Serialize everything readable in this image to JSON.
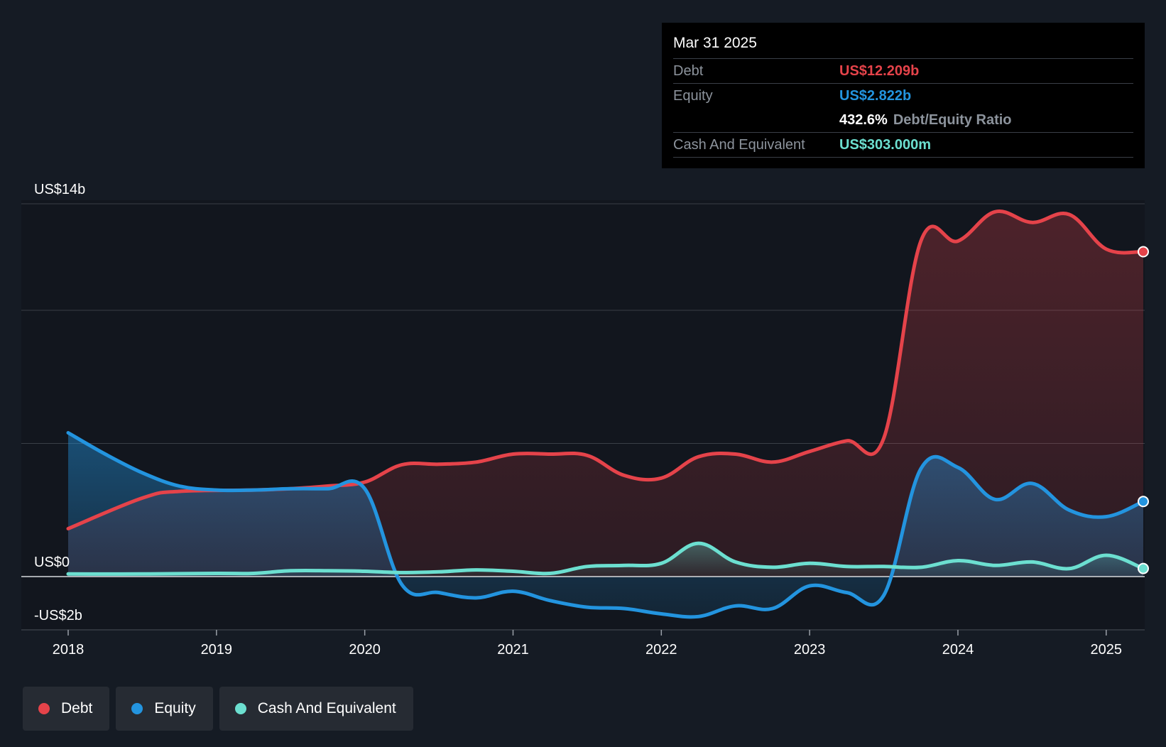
{
  "colors": {
    "debt": "#e5434a",
    "equity": "#2394df",
    "cash": "#6cdfd0",
    "background": "#151b24"
  },
  "tooltip": {
    "date": "Mar 31 2025",
    "debt_label": "Debt",
    "debt_value": "US$12.209b",
    "equity_label": "Equity",
    "equity_value": "US$2.822b",
    "ratio_value": "432.6%",
    "ratio_label": "Debt/Equity Ratio",
    "cash_label": "Cash And Equivalent",
    "cash_value": "US$303.000m"
  },
  "legend": {
    "debt": "Debt",
    "equity": "Equity",
    "cash": "Cash And Equivalent"
  },
  "chart_data": {
    "type": "area",
    "title": "",
    "xlabel": "",
    "ylabel": "",
    "xlim": [
      2018.0,
      2025.25
    ],
    "ylim": [
      -2,
      14
    ],
    "y_tick_labels": [
      {
        "value": 14,
        "label": "US$14b"
      },
      {
        "value": 0,
        "label": "US$0"
      },
      {
        "value": -2,
        "label": "-US$2b"
      }
    ],
    "x_ticks": [
      2018,
      2019,
      2020,
      2021,
      2022,
      2023,
      2024,
      2025
    ],
    "x_tick_labels": [
      "2018",
      "2019",
      "2020",
      "2021",
      "2022",
      "2023",
      "2024",
      "2025"
    ],
    "series": [
      {
        "name": "Debt",
        "color": "#e5434a",
        "points": [
          [
            2018.0,
            1.8
          ],
          [
            2018.5,
            2.95
          ],
          [
            2018.75,
            3.2
          ],
          [
            2019.25,
            3.25
          ],
          [
            2019.5,
            3.3
          ],
          [
            2019.75,
            3.4
          ],
          [
            2020.0,
            3.55
          ],
          [
            2020.25,
            4.2
          ],
          [
            2020.5,
            4.22
          ],
          [
            2020.75,
            4.3
          ],
          [
            2021.0,
            4.6
          ],
          [
            2021.25,
            4.6
          ],
          [
            2021.5,
            4.55
          ],
          [
            2021.75,
            3.8
          ],
          [
            2022.0,
            3.7
          ],
          [
            2022.25,
            4.5
          ],
          [
            2022.5,
            4.6
          ],
          [
            2022.75,
            4.3
          ],
          [
            2023.0,
            4.7
          ],
          [
            2023.25,
            5.1
          ],
          [
            2023.5,
            5.2
          ],
          [
            2023.75,
            12.6
          ],
          [
            2024.0,
            12.6
          ],
          [
            2024.25,
            13.7
          ],
          [
            2024.5,
            13.3
          ],
          [
            2024.75,
            13.6
          ],
          [
            2025.0,
            12.3
          ],
          [
            2025.25,
            12.2
          ]
        ]
      },
      {
        "name": "Equity",
        "color": "#2394df",
        "points": [
          [
            2018.0,
            5.4
          ],
          [
            2018.25,
            4.6
          ],
          [
            2018.5,
            3.9
          ],
          [
            2018.75,
            3.4
          ],
          [
            2019.0,
            3.25
          ],
          [
            2019.25,
            3.25
          ],
          [
            2019.5,
            3.3
          ],
          [
            2019.75,
            3.3
          ],
          [
            2020.0,
            3.3
          ],
          [
            2020.25,
            -0.3
          ],
          [
            2020.5,
            -0.6
          ],
          [
            2020.75,
            -0.8
          ],
          [
            2021.0,
            -0.55
          ],
          [
            2021.25,
            -0.9
          ],
          [
            2021.5,
            -1.15
          ],
          [
            2021.75,
            -1.2
          ],
          [
            2022.0,
            -1.4
          ],
          [
            2022.25,
            -1.5
          ],
          [
            2022.5,
            -1.1
          ],
          [
            2022.75,
            -1.2
          ],
          [
            2023.0,
            -0.35
          ],
          [
            2023.25,
            -0.6
          ],
          [
            2023.5,
            -0.7
          ],
          [
            2023.75,
            4.05
          ],
          [
            2024.0,
            4.1
          ],
          [
            2024.25,
            2.9
          ],
          [
            2024.5,
            3.5
          ],
          [
            2024.75,
            2.5
          ],
          [
            2025.0,
            2.25
          ],
          [
            2025.25,
            2.82
          ]
        ]
      },
      {
        "name": "Cash And Equivalent",
        "color": "#6cdfd0",
        "points": [
          [
            2018.0,
            0.1
          ],
          [
            2018.5,
            0.1
          ],
          [
            2019.0,
            0.12
          ],
          [
            2019.25,
            0.12
          ],
          [
            2019.5,
            0.22
          ],
          [
            2019.75,
            0.22
          ],
          [
            2020.0,
            0.2
          ],
          [
            2020.25,
            0.15
          ],
          [
            2020.5,
            0.18
          ],
          [
            2020.75,
            0.25
          ],
          [
            2021.0,
            0.2
          ],
          [
            2021.25,
            0.12
          ],
          [
            2021.5,
            0.38
          ],
          [
            2021.75,
            0.42
          ],
          [
            2022.0,
            0.5
          ],
          [
            2022.25,
            1.25
          ],
          [
            2022.5,
            0.55
          ],
          [
            2022.75,
            0.35
          ],
          [
            2023.0,
            0.5
          ],
          [
            2023.25,
            0.38
          ],
          [
            2023.5,
            0.38
          ],
          [
            2023.75,
            0.35
          ],
          [
            2024.0,
            0.6
          ],
          [
            2024.25,
            0.42
          ],
          [
            2024.5,
            0.55
          ],
          [
            2024.75,
            0.3
          ],
          [
            2025.0,
            0.8
          ],
          [
            2025.25,
            0.303
          ]
        ]
      }
    ],
    "legend_position": "bottom-left",
    "grid": true
  }
}
